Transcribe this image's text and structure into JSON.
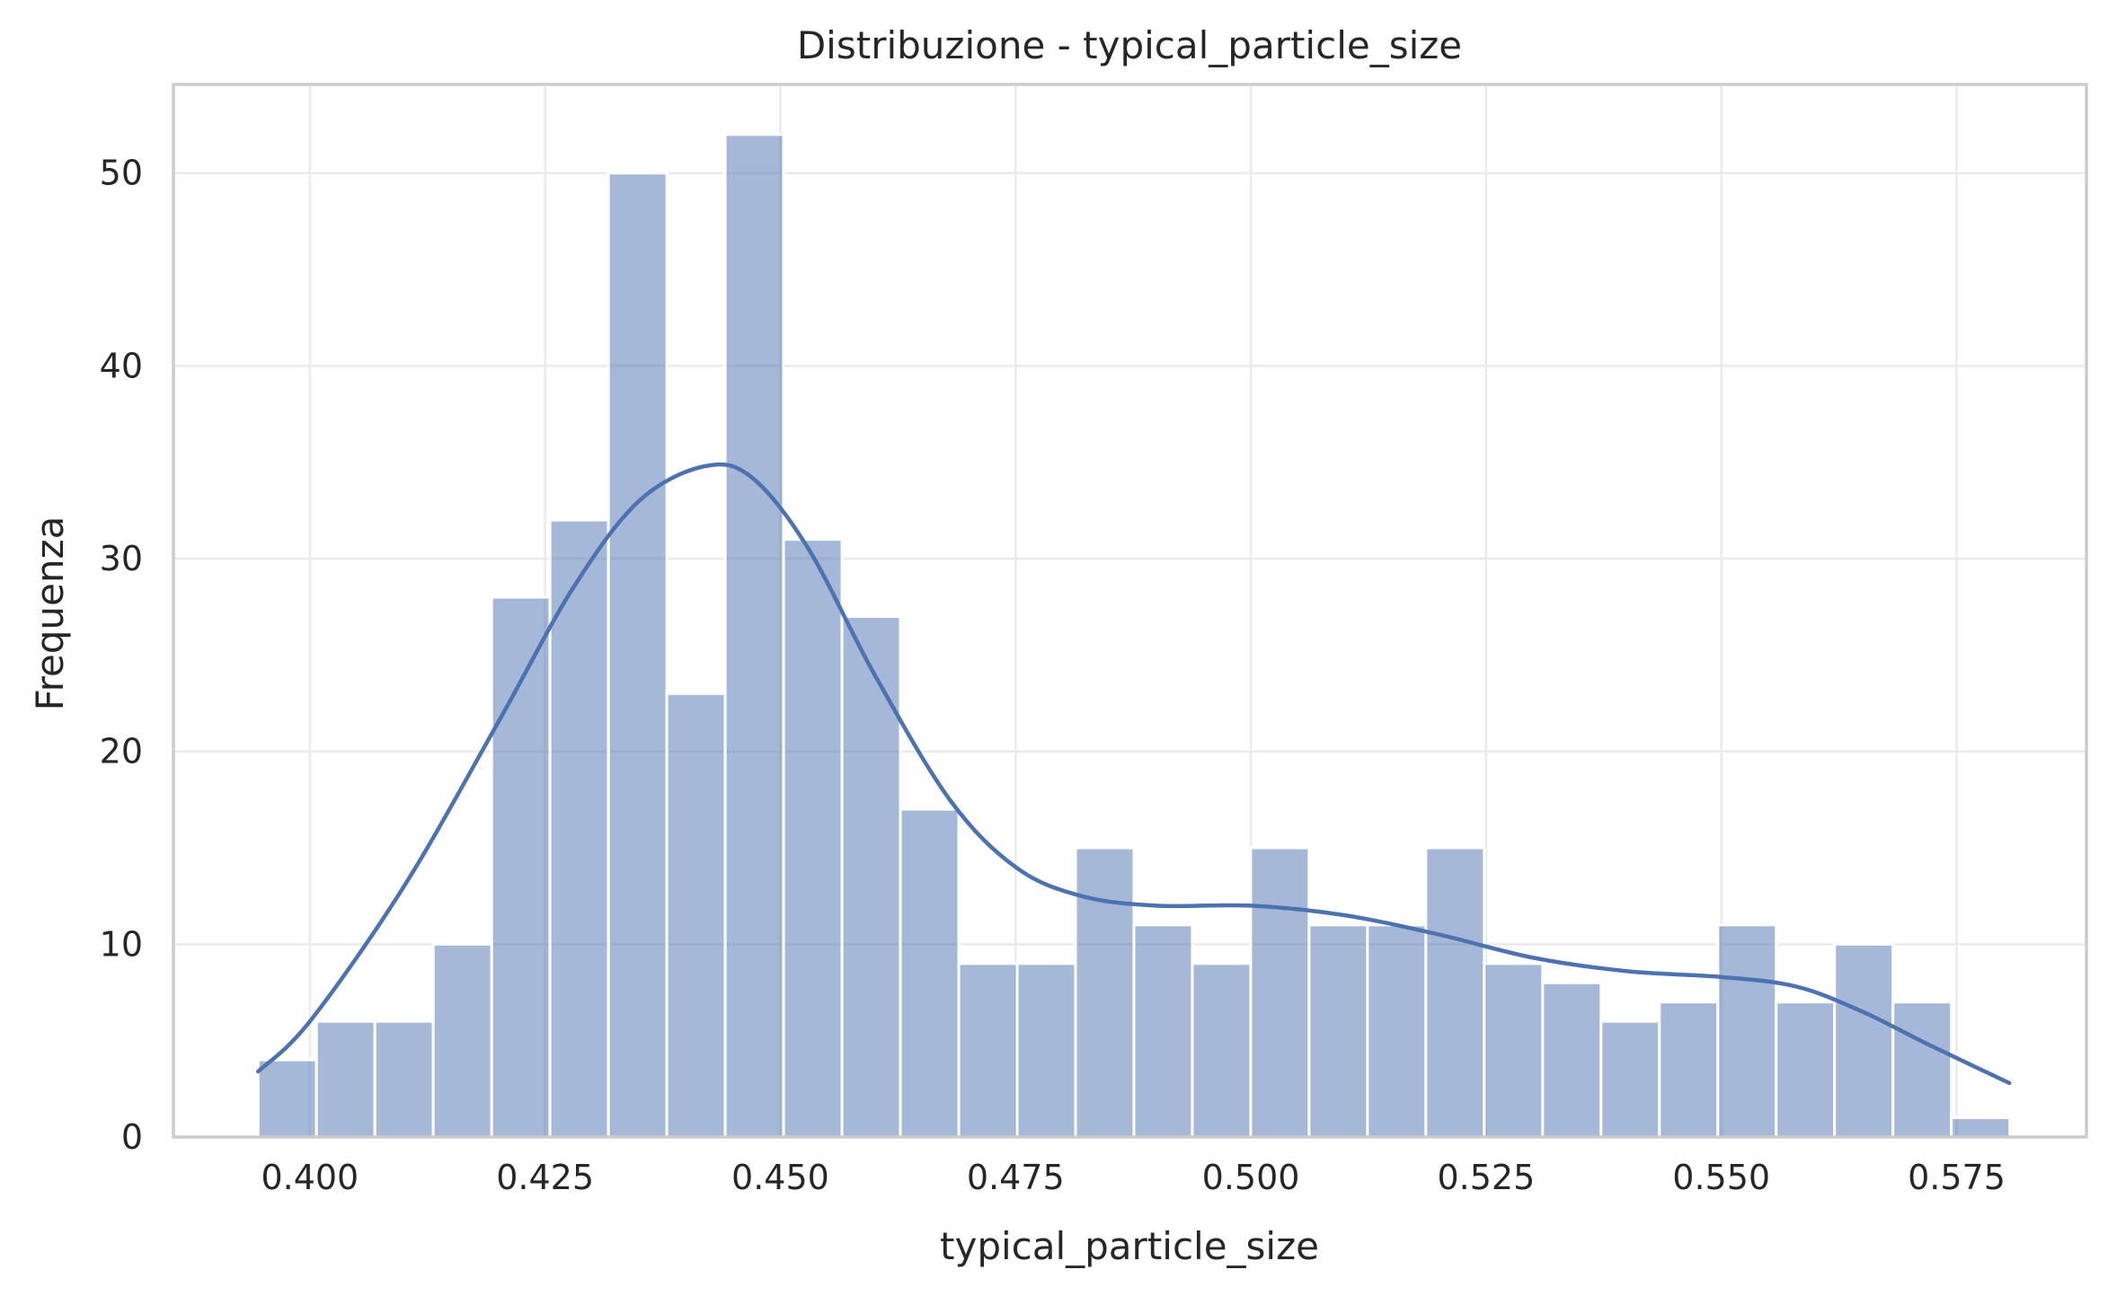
{
  "chart_data": {
    "type": "bar",
    "subtype": "histogram_with_kde",
    "title": "Distribuzione - typical_particle_size",
    "xlabel": "typical_particle_size",
    "ylabel": "Frequenza",
    "xlim": [
      0.3855,
      0.5888
    ],
    "ylim": [
      0,
      54.6
    ],
    "xticks": [
      "0.400",
      "0.425",
      "0.450",
      "0.475",
      "0.500",
      "0.525",
      "0.550",
      "0.575"
    ],
    "yticks": [
      "0",
      "10",
      "20",
      "30",
      "40",
      "50"
    ],
    "grid": true,
    "color": "#4c72b0",
    "bins": {
      "start": 0.3945,
      "width": 0.006205,
      "counts": [
        4,
        6,
        6,
        10,
        28,
        32,
        50,
        23,
        52,
        31,
        27,
        17,
        9,
        9,
        15,
        11,
        9,
        15,
        11,
        11,
        15,
        9,
        8,
        6,
        7,
        11,
        7,
        10,
        7,
        1
      ]
    },
    "kde": {
      "x": [
        0.3945,
        0.4,
        0.41,
        0.42,
        0.428,
        0.435,
        0.442,
        0.447,
        0.453,
        0.46,
        0.468,
        0.475,
        0.482,
        0.49,
        0.5,
        0.51,
        0.52,
        0.53,
        0.54,
        0.55,
        0.558,
        0.565,
        0.572,
        0.5806
      ],
      "y": [
        3.4,
        6.0,
        13.0,
        21.5,
        28.5,
        33.0,
        34.8,
        34.2,
        30.5,
        24.0,
        17.5,
        14.0,
        12.5,
        12.0,
        12.0,
        11.5,
        10.5,
        9.3,
        8.6,
        8.3,
        7.8,
        6.5,
        4.8,
        2.8
      ]
    }
  }
}
